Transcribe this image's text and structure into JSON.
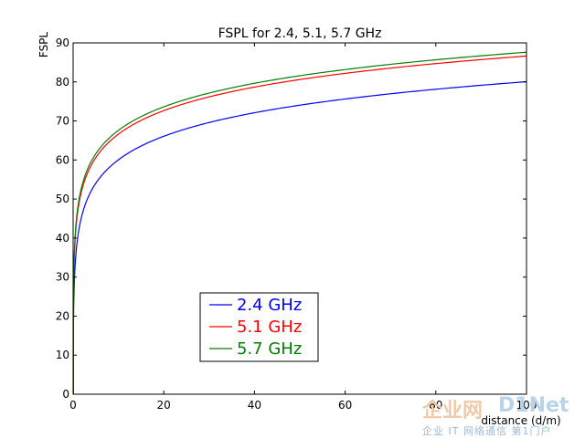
{
  "chart_data": {
    "type": "line",
    "title": "FSPL for 2.4, 5.1, 5.7 GHz",
    "xlabel": "distance (d/m)",
    "ylabel": "FSPL",
    "xlim": [
      0,
      100
    ],
    "ylim": [
      0,
      90
    ],
    "xticks": [
      0,
      20,
      40,
      60,
      80,
      100
    ],
    "yticks": [
      0,
      10,
      20,
      30,
      40,
      50,
      60,
      70,
      80,
      90
    ],
    "grid": false,
    "legend_position": "lower-center",
    "series": [
      {
        "name": "2.4 GHz",
        "color": "#0000ff",
        "freq_ghz": 2.4,
        "x": [
          0.05,
          0.5,
          1,
          2,
          5,
          10,
          20,
          40,
          60,
          80,
          100
        ],
        "y": [
          14.1,
          34.1,
          40.0,
          46.1,
          54.1,
          60.0,
          66.1,
          72.1,
          75.6,
          78.1,
          80.0
        ]
      },
      {
        "name": "5.1 GHz",
        "color": "#ff0000",
        "freq_ghz": 5.1,
        "x": [
          0.05,
          0.5,
          1,
          2,
          5,
          10,
          20,
          40,
          60,
          80,
          100
        ],
        "y": [
          20.6,
          40.6,
          46.6,
          52.7,
          60.6,
          66.6,
          72.7,
          78.7,
          82.2,
          84.7,
          86.6
        ]
      },
      {
        "name": "5.7 GHz",
        "color": "#008000",
        "freq_ghz": 5.7,
        "x": [
          0.05,
          0.5,
          1,
          2,
          5,
          10,
          20,
          40,
          60,
          80,
          100
        ],
        "y": [
          21.6,
          41.6,
          47.6,
          53.6,
          61.6,
          67.6,
          73.6,
          79.6,
          83.2,
          85.7,
          87.6
        ]
      }
    ]
  },
  "watermark": {
    "text_cn": "企业网",
    "text_en": "D1Net",
    "subtitle": "企业 IT 网络通信 第1门户"
  }
}
